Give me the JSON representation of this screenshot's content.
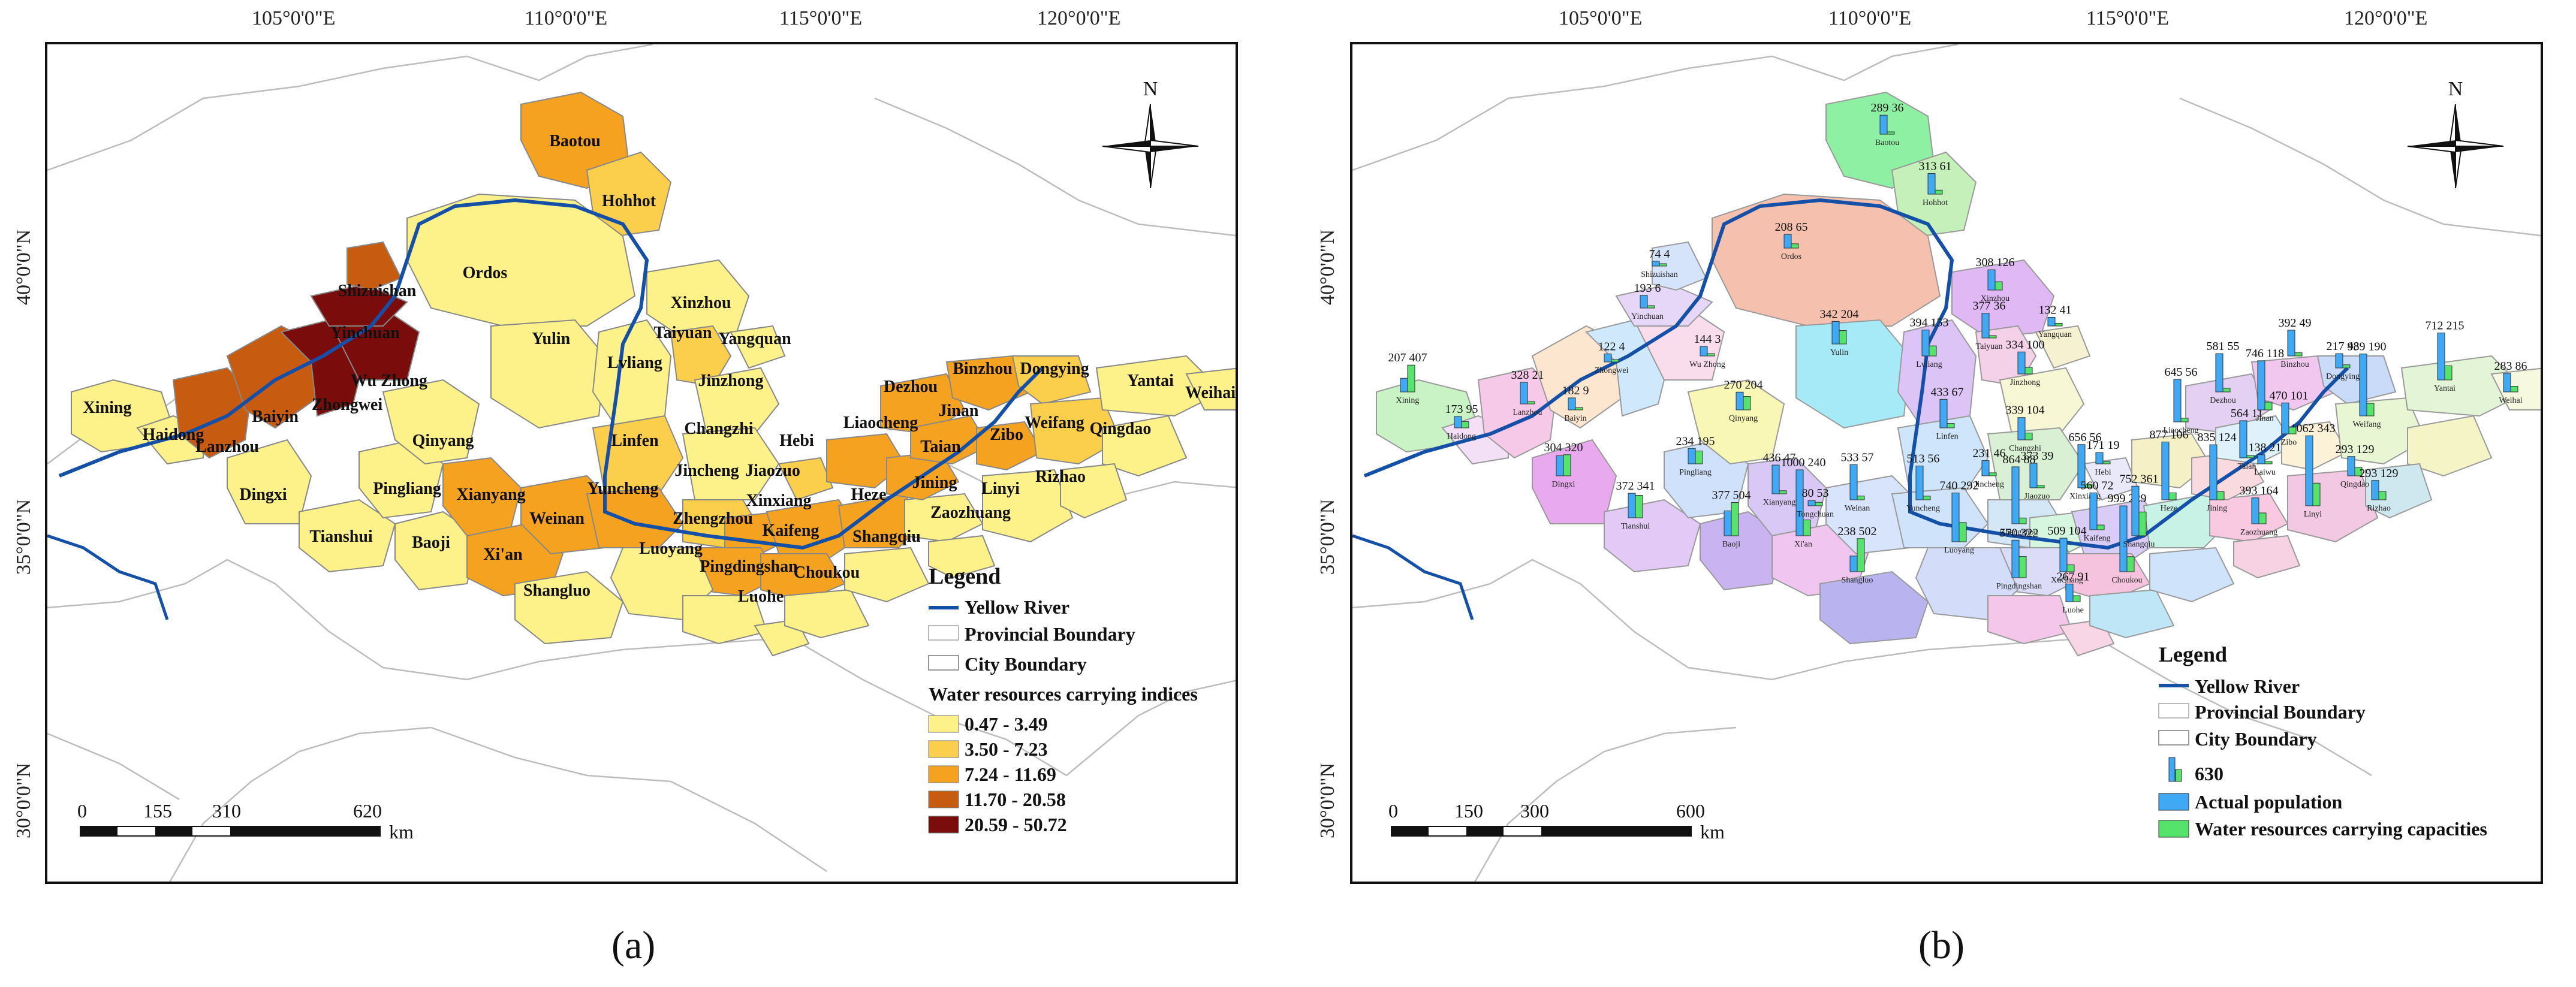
{
  "lon_ticks": [
    "105°0'0\"E",
    "110°0'0\"E",
    "115°0'0\"E",
    "120°0'0\"E"
  ],
  "lat_ticks": [
    "40°0'0\"N",
    "35°0'0\"N",
    "30°0'0\"N"
  ],
  "north_label": "N",
  "panel_a": {
    "caption": "(a)",
    "legend": {
      "title": "Legend",
      "yellow_river": "Yellow River",
      "provincial_boundary": "Provincial Boundary",
      "city_boundary": "City Boundary",
      "classes_title": "Water resources carrying indices",
      "classes": [
        {
          "label": "0.47 - 3.49",
          "color": "#fdf28a"
        },
        {
          "label": "3.50 - 7.23",
          "color": "#fbcf4c"
        },
        {
          "label": "7.24 - 11.69",
          "color": "#f4a21f"
        },
        {
          "label": "11.70 - 20.58",
          "color": "#c75c10"
        },
        {
          "label": "20.59 - 50.72",
          "color": "#7a0c0c"
        }
      ]
    },
    "scale": {
      "labels": [
        "0",
        "155",
        "310",
        "620"
      ],
      "unit": "km"
    },
    "cities": [
      "Baotou",
      "Hohhot",
      "Ordos",
      "Shizuishan",
      "Yinchuan",
      "Wu Zhong",
      "Zhongwei",
      "Baiyin",
      "Lanzhou",
      "Xining",
      "Haidong",
      "Dingxi",
      "Tianshui",
      "Pingliang",
      "Qinyang",
      "Xianyang",
      "Baoji",
      "Xi'an",
      "Shangluo",
      "Weinan",
      "Yuncheng",
      "Linfen",
      "Lvliang",
      "Yulin",
      "Xinzhou",
      "Taiyuan",
      "Yangquan",
      "Jinzhong",
      "Changzhi",
      "Jincheng",
      "Jiaozuo",
      "Hebi",
      "Xinxiang",
      "Zhengzhou",
      "Kaifeng",
      "Luoyang",
      "Pingdingshan",
      "Luohe",
      "Choukou",
      "Shangqiu",
      "Heze",
      "Jining",
      "Taian",
      "Liaocheng",
      "Dezhou",
      "Binzhou",
      "Jinan",
      "Zibo",
      "Dongying",
      "Weifang",
      "Qingdao",
      "Yantai",
      "Weihai",
      "Rizhao",
      "Linyi",
      "Zaozhuang"
    ]
  },
  "panel_b": {
    "caption": "(b)",
    "legend": {
      "title": "Legend",
      "yellow_river": "Yellow River",
      "provincial_boundary": "Provincial Boundary",
      "city_boundary": "City Boundary",
      "bar_sample": "630",
      "actual_population": "Actual population",
      "carrying_capacities": "Water resources carrying capacities",
      "pop_color": "#3fa9f5",
      "cap_color": "#55e36b"
    },
    "scale": {
      "labels": [
        "0",
        "150",
        "300",
        "600"
      ],
      "unit": "km"
    },
    "bars": [
      {
        "city": "Baotou",
        "pop": "289",
        "cap": "36"
      },
      {
        "city": "Hohhot",
        "pop": "313",
        "cap": "61"
      },
      {
        "city": "Ordos",
        "pop": "208",
        "cap": "65"
      },
      {
        "city": "Shizuishan",
        "pop": "74",
        "cap": "4"
      },
      {
        "city": "Yinchuan",
        "pop": "193",
        "cap": "6"
      },
      {
        "city": "Wu Zhong",
        "pop": "144",
        "cap": "3"
      },
      {
        "city": "Zhongwei",
        "pop": "122",
        "cap": "4"
      },
      {
        "city": "Baiyin",
        "pop": "182",
        "cap": "9"
      },
      {
        "city": "Lanzhou",
        "pop": "328",
        "cap": "21"
      },
      {
        "city": "Xining",
        "pop": "207",
        "cap": "407"
      },
      {
        "city": "Haidong",
        "pop": "173",
        "cap": "95"
      },
      {
        "city": "Dingxi",
        "pop": "304",
        "cap": "320"
      },
      {
        "city": "Tianshui",
        "pop": "372",
        "cap": "341"
      },
      {
        "city": "Pingliang",
        "pop": "234",
        "cap": "195"
      },
      {
        "city": "Qinyang",
        "pop": "270",
        "cap": "204"
      },
      {
        "city": "Baoji",
        "pop": "377",
        "cap": "504"
      },
      {
        "city": "Xianyang",
        "pop": "436",
        "cap": "47"
      },
      {
        "city": "Xi'an",
        "pop": "1000",
        "cap": "240"
      },
      {
        "city": "Tongchuan",
        "pop": "80",
        "cap": "53"
      },
      {
        "city": "Weinan",
        "pop": "533",
        "cap": "57"
      },
      {
        "city": "Shangluo",
        "pop": "238",
        "cap": "502"
      },
      {
        "city": "Yulin",
        "pop": "342",
        "cap": "204"
      },
      {
        "city": "Yuncheng",
        "pop": "513",
        "cap": "56"
      },
      {
        "city": "Lvliang",
        "pop": "394",
        "cap": "153"
      },
      {
        "city": "Xinzhou",
        "pop": "308",
        "cap": "126"
      },
      {
        "city": "Taiyuan",
        "pop": "377",
        "cap": "36"
      },
      {
        "city": "Yangquan",
        "pop": "132",
        "cap": "41"
      },
      {
        "city": "Jinzhong",
        "pop": "334",
        "cap": "100"
      },
      {
        "city": "Linfen",
        "pop": "433",
        "cap": "67"
      },
      {
        "city": "Changzhi",
        "pop": "339",
        "cap": "104"
      },
      {
        "city": "Jincheng",
        "pop": "231",
        "cap": "46"
      },
      {
        "city": "Jiaozuo",
        "pop": "373",
        "cap": "39"
      },
      {
        "city": "Hebi",
        "pop": "171",
        "cap": "19"
      },
      {
        "city": "Xinxiang",
        "pop": "656",
        "cap": "56"
      },
      {
        "city": "Zhengzhou",
        "pop": "864",
        "cap": "88"
      },
      {
        "city": "Kaifeng",
        "pop": "560",
        "cap": "72"
      },
      {
        "city": "Luoyang",
        "pop": "740",
        "cap": "292"
      },
      {
        "city": "Pingdingshan",
        "pop": "570",
        "cap": "322"
      },
      {
        "city": "XuChang",
        "pop": "509",
        "cap": "104"
      },
      {
        "city": "Luohe",
        "pop": "267",
        "cap": "91"
      },
      {
        "city": "Choukou",
        "pop": "999",
        "cap": "229"
      },
      {
        "city": "Shangqiu",
        "pop": "752",
        "cap": "361"
      },
      {
        "city": "Heze",
        "pop": "877",
        "cap": "106"
      },
      {
        "city": "Jining",
        "pop": "835",
        "cap": "124"
      },
      {
        "city": "Zaozhuang",
        "pop": "393",
        "cap": "164"
      },
      {
        "city": "Linyi",
        "pop": "1062",
        "cap": "343"
      },
      {
        "city": "Taian",
        "pop": "564",
        "cap": "11"
      },
      {
        "city": "Liaocheng",
        "pop": "645",
        "cap": "56"
      },
      {
        "city": "Dezhou",
        "pop": "581",
        "cap": "55"
      },
      {
        "city": "Binzhou",
        "pop": "392",
        "cap": "49"
      },
      {
        "city": "Jinan",
        "pop": "746",
        "cap": "118"
      },
      {
        "city": "Zibo",
        "pop": "470",
        "cap": "101"
      },
      {
        "city": "Laiwu",
        "pop": "138",
        "cap": "21"
      },
      {
        "city": "Dongying",
        "pop": "217",
        "cap": "48"
      },
      {
        "city": "Weifang",
        "pop": "939",
        "cap": "190"
      },
      {
        "city": "Qingdao",
        "pop": "293",
        "cap": "129"
      },
      {
        "city": "Yantai",
        "pop": "712",
        "cap": "215"
      },
      {
        "city": "Weihai",
        "pop": "283",
        "cap": "86"
      },
      {
        "city": "Rizhao",
        "pop": "293",
        "cap": "129"
      }
    ]
  }
}
